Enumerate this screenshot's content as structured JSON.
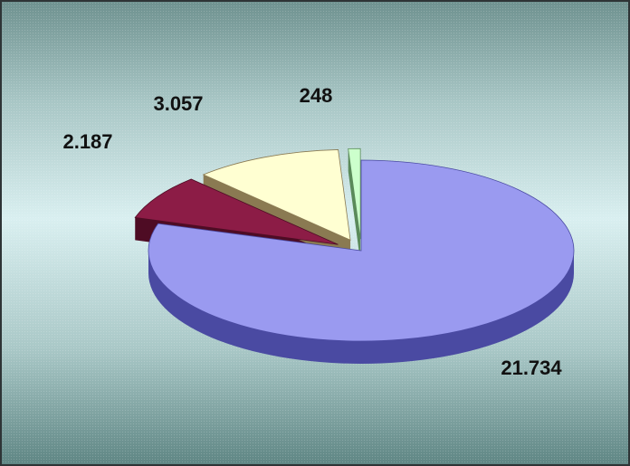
{
  "chart_data": {
    "type": "pie",
    "style": "3d-exploded",
    "slices": [
      {
        "label": "21.734",
        "value": 21734,
        "color": "#9a9af0",
        "side_color": "#4a4aa2"
      },
      {
        "label": "2.187",
        "value": 2187,
        "color": "#8c1c46",
        "side_color": "#4e0c24"
      },
      {
        "label": "3.057",
        "value": 3057,
        "color": "#ffffd2",
        "side_color": "#8a7a52"
      },
      {
        "label": "248",
        "value": 248,
        "color": "#ccffcc",
        "side_color": "#5a8a5a"
      }
    ],
    "legend": "none",
    "grid": false
  }
}
